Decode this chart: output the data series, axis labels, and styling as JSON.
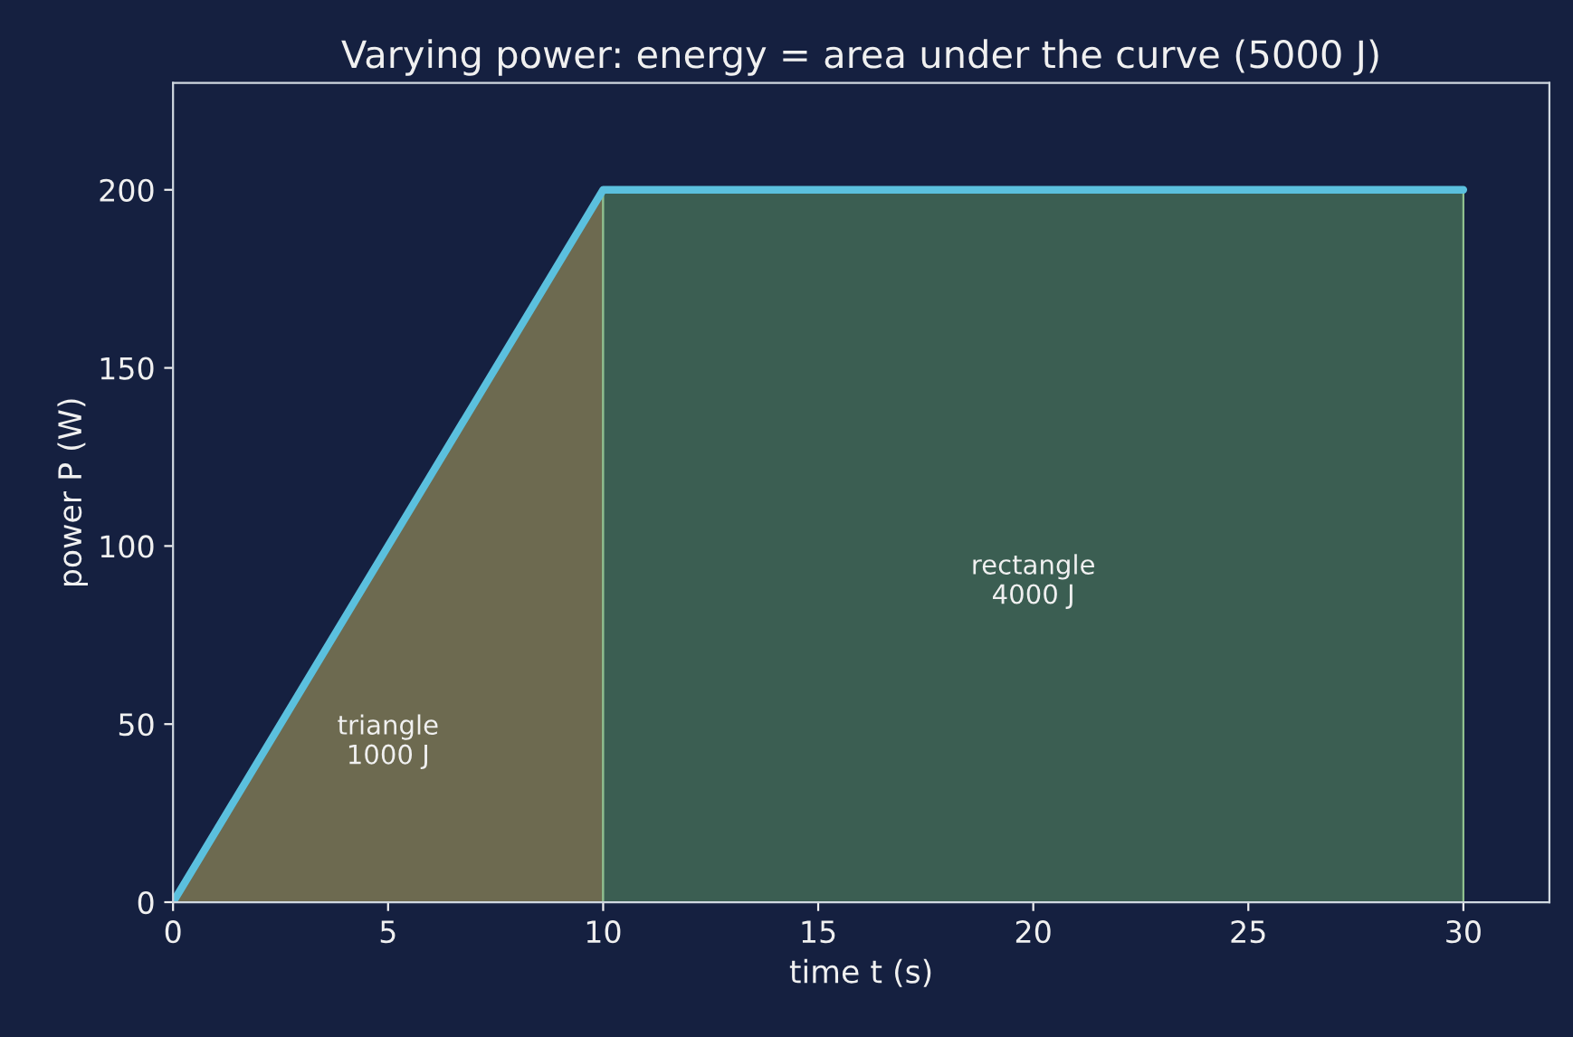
{
  "chart_data": {
    "type": "area",
    "title": "Varying power: energy = area under the curve (5000 J)",
    "xlabel": "time t (s)",
    "ylabel": "power P (W)",
    "series": [
      {
        "x": [
          0,
          10
        ],
        "values": [
          0,
          200
        ],
        "color": "#6d6a50"
      },
      {
        "x": [
          10,
          30
        ],
        "values": [
          200,
          200
        ],
        "color": "#3b5e52"
      },
      {
        "type": "line",
        "x": [
          0,
          10,
          30
        ],
        "values": [
          0,
          200,
          200
        ],
        "color": "#5bc0de"
      }
    ],
    "annotations": [
      "triangle\n1000 J",
      "rectangle\n4000 J"
    ],
    "xlim": [
      0,
      32
    ],
    "ylim": [
      0,
      230
    ],
    "xticks": [
      0,
      5,
      10,
      15,
      20,
      25,
      30
    ],
    "yticks": [
      0,
      50,
      100,
      150,
      200
    ],
    "grid": false
  }
}
